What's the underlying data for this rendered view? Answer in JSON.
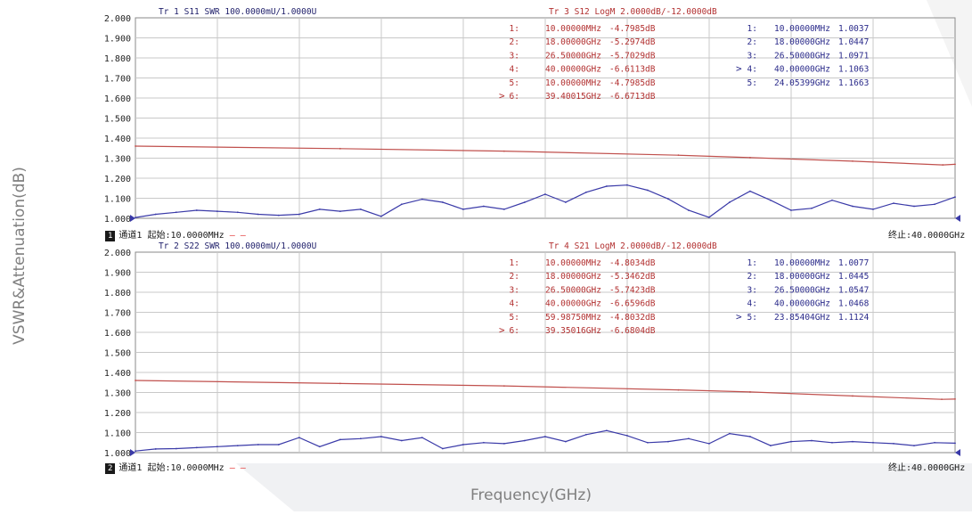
{
  "axis_labels": {
    "y": "VSWR&Attenuation(dB)",
    "x": "Frequency(GHz)"
  },
  "colors": {
    "red_trace": "#c0504d",
    "blue_trace": "#3a3aa8",
    "grid": "#c8c8c8",
    "red_text": "#b23030",
    "blue_text": "#2a2a8a"
  },
  "panels": [
    {
      "yticks": [
        "2.000",
        "1.900",
        "1.800",
        "1.700",
        "1.600",
        "1.500",
        "1.400",
        "1.300",
        "1.200",
        "1.100",
        "1.000"
      ],
      "header_left": "Tr 1  S11 SWR 100.0000mU/1.0000U",
      "header_right": "Tr 3  S12 LogM 2.0000dB/-12.0000dB",
      "red_markers": [
        {
          "n": "1:",
          "freq": "10.00000MHz",
          "val": "-4.7985dB",
          "active": false
        },
        {
          "n": "2:",
          "freq": "18.00000GHz",
          "val": "-5.2974dB",
          "active": false
        },
        {
          "n": "3:",
          "freq": "26.50000GHz",
          "val": "-5.7029dB",
          "active": false
        },
        {
          "n": "4:",
          "freq": "40.00000GHz",
          "val": "-6.6113dB",
          "active": false
        },
        {
          "n": "5:",
          "freq": "10.00000MHz",
          "val": "-4.7985dB",
          "active": false
        },
        {
          "n": "6:",
          "freq": "39.40015GHz",
          "val": "-6.6713dB",
          "active": true
        }
      ],
      "blue_markers": [
        {
          "n": "1:",
          "freq": "10.00000MHz",
          "val": "1.0037",
          "active": false
        },
        {
          "n": "2:",
          "freq": "18.00000GHz",
          "val": "1.0447",
          "active": false
        },
        {
          "n": "3:",
          "freq": "26.50000GHz",
          "val": "1.0971",
          "active": false
        },
        {
          "n": "4:",
          "freq": "40.00000GHz",
          "val": "1.1063",
          "active": true
        },
        {
          "n": "5:",
          "freq": "24.05399GHz",
          "val": "1.1663",
          "active": false
        }
      ],
      "footer_channel": "1",
      "footer_channel_text": "通道1",
      "footer_start": "起始:10.0000MHz",
      "footer_dash": "— —",
      "footer_stop": "终止:40.0000GHz"
    },
    {
      "yticks": [
        "2.000",
        "1.900",
        "1.800",
        "1.700",
        "1.600",
        "1.500",
        "1.400",
        "1.300",
        "1.200",
        "1.100",
        "1.000"
      ],
      "header_left": "Tr 2  S22 SWR 100.0000mU/1.0000U",
      "header_right": "Tr 4  S21 LogM 2.0000dB/-12.0000dB",
      "red_markers": [
        {
          "n": "1:",
          "freq": "10.00000MHz",
          "val": "-4.8034dB",
          "active": false
        },
        {
          "n": "2:",
          "freq": "18.00000GHz",
          "val": "-5.3462dB",
          "active": false
        },
        {
          "n": "3:",
          "freq": "26.50000GHz",
          "val": "-5.7423dB",
          "active": false
        },
        {
          "n": "4:",
          "freq": "40.00000GHz",
          "val": "-6.6596dB",
          "active": false
        },
        {
          "n": "5:",
          "freq": "59.98750MHz",
          "val": "-4.8032dB",
          "active": false
        },
        {
          "n": "6:",
          "freq": "39.35016GHz",
          "val": "-6.6804dB",
          "active": true
        }
      ],
      "blue_markers": [
        {
          "n": "1:",
          "freq": "10.00000MHz",
          "val": "1.0077",
          "active": false
        },
        {
          "n": "2:",
          "freq": "18.00000GHz",
          "val": "1.0445",
          "active": false
        },
        {
          "n": "3:",
          "freq": "26.50000GHz",
          "val": "1.0547",
          "active": false
        },
        {
          "n": "4:",
          "freq": "40.00000GHz",
          "val": "1.0468",
          "active": false
        },
        {
          "n": "5:",
          "freq": "23.85404GHz",
          "val": "1.1124",
          "active": true
        }
      ],
      "footer_channel": "2",
      "footer_channel_text": "通道1",
      "footer_start": "起始:10.0000MHz",
      "footer_dash": "— —",
      "footer_stop": "终止:40.0000GHz"
    }
  ],
  "chart_data": [
    {
      "type": "line",
      "xlim": [
        0.01,
        40
      ],
      "ylim": [
        1.0,
        2.0
      ],
      "grid": true,
      "series": [
        {
          "name": "S11 SWR",
          "x": [
            0.01,
            1,
            2,
            3,
            4,
            5,
            6,
            7,
            8,
            9,
            10,
            11,
            12,
            13,
            14,
            15,
            16,
            17,
            18,
            19,
            20,
            21,
            22,
            23,
            24,
            25,
            26,
            27,
            28,
            29,
            30,
            31,
            32,
            33,
            34,
            35,
            36,
            37,
            38,
            39,
            40
          ],
          "y": [
            1.004,
            1.02,
            1.03,
            1.04,
            1.035,
            1.03,
            1.02,
            1.015,
            1.02,
            1.045,
            1.035,
            1.045,
            1.01,
            1.07,
            1.095,
            1.08,
            1.045,
            1.06,
            1.045,
            1.08,
            1.12,
            1.08,
            1.13,
            1.16,
            1.166,
            1.14,
            1.097,
            1.04,
            1.005,
            1.08,
            1.135,
            1.09,
            1.04,
            1.05,
            1.09,
            1.06,
            1.045,
            1.075,
            1.06,
            1.07,
            1.106
          ]
        },
        {
          "name": "S12 LogM",
          "x": [
            0.01,
            10,
            18,
            26.5,
            30,
            35,
            39.4,
            40
          ],
          "y": [
            -4.7985,
            -5.05,
            -5.2974,
            -5.7029,
            -5.95,
            -6.3,
            -6.6713,
            -6.6113
          ]
        }
      ]
    },
    {
      "type": "line",
      "xlim": [
        0.01,
        40
      ],
      "ylim": [
        1.0,
        2.0
      ],
      "grid": true,
      "series": [
        {
          "name": "S22 SWR",
          "x": [
            0.01,
            1,
            2,
            3,
            4,
            5,
            6,
            7,
            8,
            9,
            10,
            11,
            12,
            13,
            14,
            15,
            16,
            17,
            18,
            19,
            20,
            21,
            22,
            23,
            24,
            25,
            26,
            27,
            28,
            29,
            30,
            31,
            32,
            33,
            34,
            35,
            36,
            37,
            38,
            39,
            40
          ],
          "y": [
            1.008,
            1.018,
            1.02,
            1.025,
            1.03,
            1.035,
            1.04,
            1.04,
            1.075,
            1.03,
            1.065,
            1.07,
            1.08,
            1.06,
            1.075,
            1.02,
            1.04,
            1.05,
            1.045,
            1.06,
            1.08,
            1.055,
            1.09,
            1.11,
            1.085,
            1.05,
            1.055,
            1.07,
            1.045,
            1.095,
            1.08,
            1.035,
            1.055,
            1.06,
            1.05,
            1.055,
            1.05,
            1.045,
            1.035,
            1.05,
            1.047
          ]
        },
        {
          "name": "S21 LogM",
          "x": [
            0.01,
            10,
            18,
            26.5,
            30,
            35,
            39.35,
            40
          ],
          "y": [
            -4.8034,
            -5.1,
            -5.3462,
            -5.7423,
            -5.95,
            -6.35,
            -6.6804,
            -6.6596
          ]
        }
      ]
    }
  ]
}
